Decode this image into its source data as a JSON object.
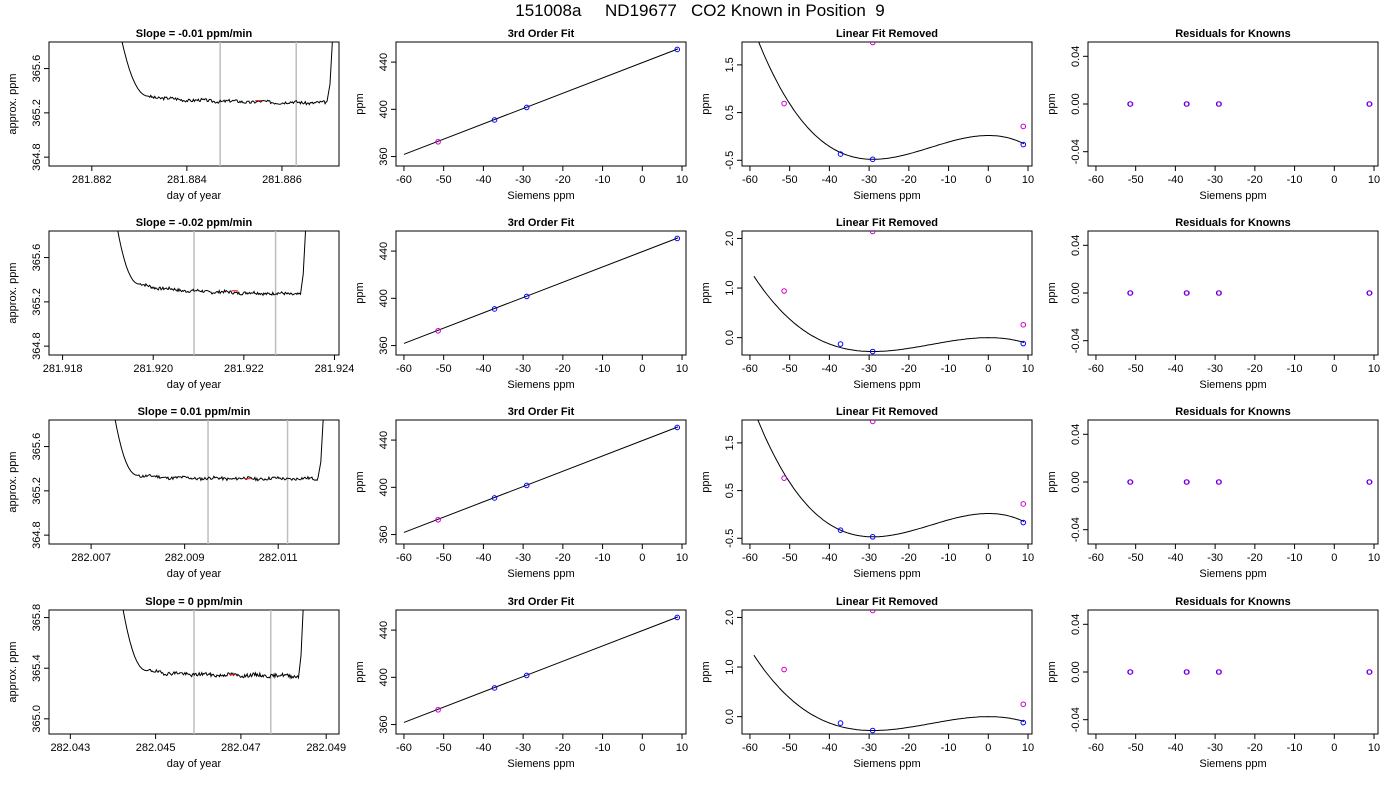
{
  "figure": {
    "title": "151008a     ND19677   CO2 Known in Position  9"
  },
  "colors": {
    "known_point": "#0000ff",
    "unknown_point": "#cc00cc",
    "line": "#000000",
    "window_marker": "#bebebe",
    "window_segment": "#ff0000"
  },
  "chart_data": [
    {
      "type": "line",
      "title": "Slope =  -0.01  ppm/min",
      "xlabel": "day of year",
      "ylabel": "approx. ppm",
      "xlim": [
        281.8811,
        281.8872
      ],
      "ylim": [
        364.72,
        365.84
      ],
      "xticks": [
        "281.882",
        "281.884",
        "281.886"
      ],
      "xtick_values": [
        281.882,
        281.884,
        281.886
      ],
      "yticks": [
        "364.8",
        "365.2",
        "365.6"
      ],
      "ytick_values": [
        364.8,
        365.2,
        365.6
      ],
      "window_markers": [
        281.8847,
        281.8863
      ],
      "trace": {
        "start": 281.8825,
        "plateau_start": 281.8832,
        "plateau_end": 281.88695,
        "end": 281.8871,
        "first_level": 365.35,
        "level": 365.31,
        "drift": -0.02,
        "seed": 3
      }
    },
    {
      "type": "line",
      "title": "3rd Order Fit",
      "xlabel": "Siemens ppm",
      "ylabel": "ppm",
      "xlim": [
        -62,
        11
      ],
      "ylim": [
        352,
        457
      ],
      "xticks": [
        "-60",
        "-50",
        "-40",
        "-30",
        "-20",
        "-10",
        "0",
        "10"
      ],
      "xtick_values": [
        -60,
        -50,
        -40,
        -30,
        -20,
        -10,
        0,
        10
      ],
      "yticks": [
        "360",
        "400",
        "440"
      ],
      "ytick_values": [
        360,
        400,
        440
      ],
      "fit_x": [
        -60,
        9
      ],
      "fit_y": [
        361.8,
        451.2
      ],
      "points": [
        {
          "x": -51.4,
          "y": 372.5,
          "kind": "unknown"
        },
        {
          "x": -37.2,
          "y": 391.0,
          "kind": "known"
        },
        {
          "x": -29.1,
          "y": 401.6,
          "kind": "known"
        },
        {
          "x": 8.8,
          "y": 450.7,
          "kind": "known"
        }
      ]
    },
    {
      "type": "line",
      "title": "Linear Fit Removed",
      "xlabel": "Siemens ppm",
      "ylabel": "ppm",
      "xlim": [
        -62,
        11
      ],
      "ylim": [
        -0.62,
        1.98
      ],
      "xticks": [
        "-60",
        "-50",
        "-40",
        "-30",
        "-20",
        "-10",
        "0",
        "10"
      ],
      "xtick_values": [
        -60,
        -50,
        -40,
        -30,
        -20,
        -10,
        0,
        10
      ],
      "yticks": [
        "-0.5",
        "0.5",
        "1.5"
      ],
      "ytick_values": [
        -0.5,
        0.5,
        1.5
      ],
      "curve": {
        "x_start": -59,
        "x_end": 9,
        "x1": -29,
        "y1": -0.48,
        "x2": 0,
        "y2": 0.02,
        "y_end": -0.17
      },
      "points": [
        {
          "x": -51.4,
          "y": 0.69,
          "kind": "unknown"
        },
        {
          "x": -37.2,
          "y": -0.37,
          "kind": "known"
        },
        {
          "x": -29.1,
          "y": -0.48,
          "kind": "known"
        },
        {
          "x": 8.8,
          "y": -0.17,
          "kind": "known"
        },
        {
          "x": -29.1,
          "y": 1.97,
          "kind": "unknown"
        },
        {
          "x": 8.8,
          "y": 0.21,
          "kind": "unknown"
        }
      ]
    },
    {
      "type": "scatter",
      "title": "Residuals for Knowns",
      "xlabel": "Siemens ppm",
      "ylabel": "ppm",
      "xlim": [
        -62,
        11
      ],
      "ylim": [
        -0.052,
        0.052
      ],
      "xticks": [
        "-60",
        "-50",
        "-40",
        "-30",
        "-20",
        "-10",
        "0",
        "10"
      ],
      "xtick_values": [
        -60,
        -50,
        -40,
        -30,
        -20,
        -10,
        0,
        10
      ],
      "yticks": [
        "-0.04",
        "0.00",
        "0.04"
      ],
      "ytick_values": [
        -0.04,
        0,
        0.04
      ],
      "points": [
        {
          "x": -51.4,
          "y": 0,
          "kind": "mixed"
        },
        {
          "x": -37.2,
          "y": 0,
          "kind": "mixed"
        },
        {
          "x": -29.1,
          "y": 0,
          "kind": "mixed"
        },
        {
          "x": 8.8,
          "y": 0,
          "kind": "mixed"
        }
      ]
    },
    {
      "type": "line",
      "title": "Slope =  -0.02  ppm/min",
      "xlabel": "day of year",
      "ylabel": "approx. ppm",
      "xlim": [
        281.9177,
        281.9241
      ],
      "ylim": [
        364.72,
        365.84
      ],
      "xticks": [
        "281.918",
        "281.920",
        "281.922",
        "281.924"
      ],
      "xtick_values": [
        281.918,
        281.92,
        281.922,
        281.924
      ],
      "yticks": [
        "364.8",
        "365.2",
        "365.6"
      ],
      "ytick_values": [
        364.8,
        365.2,
        365.6
      ],
      "window_markers": [
        281.9209,
        281.9227
      ],
      "trace": {
        "start": 281.9191,
        "plateau_start": 281.9197,
        "plateau_end": 281.92325,
        "end": 281.9234,
        "first_level": 365.36,
        "level": 365.3,
        "drift": -0.03,
        "seed": 7
      }
    },
    {
      "type": "line",
      "title": "3rd Order Fit",
      "xlabel": "Siemens ppm",
      "ylabel": "ppm",
      "xlim": [
        -62,
        11
      ],
      "ylim": [
        352,
        457
      ],
      "xticks": [
        "-60",
        "-50",
        "-40",
        "-30",
        "-20",
        "-10",
        "0",
        "10"
      ],
      "xtick_values": [
        -60,
        -50,
        -40,
        -30,
        -20,
        -10,
        0,
        10
      ],
      "yticks": [
        "360",
        "400",
        "440"
      ],
      "ytick_values": [
        360,
        400,
        440
      ],
      "fit_x": [
        -60,
        9
      ],
      "fit_y": [
        361.8,
        451.2
      ],
      "points": [
        {
          "x": -51.4,
          "y": 372.5,
          "kind": "unknown"
        },
        {
          "x": -37.2,
          "y": 391.0,
          "kind": "known"
        },
        {
          "x": -29.1,
          "y": 401.6,
          "kind": "known"
        },
        {
          "x": 8.8,
          "y": 450.7,
          "kind": "known"
        }
      ]
    },
    {
      "type": "line",
      "title": "Linear Fit Removed",
      "xlabel": "Siemens ppm",
      "ylabel": "ppm",
      "xlim": [
        -62,
        11
      ],
      "ylim": [
        -0.35,
        2.15
      ],
      "xticks": [
        "-60",
        "-50",
        "-40",
        "-30",
        "-20",
        "-10",
        "0",
        "10"
      ],
      "xtick_values": [
        -60,
        -50,
        -40,
        -30,
        -20,
        -10,
        0,
        10
      ],
      "yticks": [
        "0.0",
        "1.0",
        "2.0"
      ],
      "ytick_values": [
        0,
        1,
        2
      ],
      "curve": {
        "x_start": -59,
        "x_end": 9,
        "x1": -29,
        "y1": -0.28,
        "x2": 0,
        "y2": 0.0,
        "y_end": -0.12
      },
      "points": [
        {
          "x": -51.4,
          "y": 0.94,
          "kind": "unknown"
        },
        {
          "x": -37.2,
          "y": -0.13,
          "kind": "known"
        },
        {
          "x": -29.1,
          "y": -0.28,
          "kind": "known"
        },
        {
          "x": 8.8,
          "y": -0.12,
          "kind": "known"
        },
        {
          "x": -29.1,
          "y": 2.14,
          "kind": "unknown"
        },
        {
          "x": 8.8,
          "y": 0.26,
          "kind": "unknown"
        }
      ]
    },
    {
      "type": "scatter",
      "title": "Residuals for Knowns",
      "xlabel": "Siemens ppm",
      "ylabel": "ppm",
      "xlim": [
        -62,
        11
      ],
      "ylim": [
        -0.052,
        0.052
      ],
      "xticks": [
        "-60",
        "-50",
        "-40",
        "-30",
        "-20",
        "-10",
        "0",
        "10"
      ],
      "xtick_values": [
        -60,
        -50,
        -40,
        -30,
        -20,
        -10,
        0,
        10
      ],
      "yticks": [
        "-0.04",
        "0.00",
        "0.04"
      ],
      "ytick_values": [
        -0.04,
        0,
        0.04
      ],
      "points": [
        {
          "x": -51.4,
          "y": 0,
          "kind": "mixed"
        },
        {
          "x": -37.2,
          "y": 0,
          "kind": "mixed"
        },
        {
          "x": -29.1,
          "y": 0,
          "kind": "mixed"
        },
        {
          "x": 8.8,
          "y": 0,
          "kind": "mixed"
        }
      ]
    },
    {
      "type": "line",
      "title": "Slope =  0.01  ppm/min",
      "xlabel": "day of year",
      "ylabel": "approx. ppm",
      "xlim": [
        282.0061,
        282.0123
      ],
      "ylim": [
        364.72,
        365.84
      ],
      "xticks": [
        "282.007",
        "282.009",
        "282.011"
      ],
      "xtick_values": [
        282.007,
        282.009,
        282.011
      ],
      "yticks": [
        "364.8",
        "365.2",
        "365.6"
      ],
      "ytick_values": [
        364.8,
        365.2,
        365.6
      ],
      "window_markers": [
        282.0095,
        282.0112
      ],
      "trace": {
        "start": 282.0074,
        "plateau_start": 282.008,
        "plateau_end": 282.01185,
        "end": 282.012,
        "first_level": 365.34,
        "level": 365.31,
        "drift": 0.0,
        "seed": 11
      }
    },
    {
      "type": "line",
      "title": "3rd Order Fit",
      "xlabel": "Siemens ppm",
      "ylabel": "ppm",
      "xlim": [
        -62,
        11
      ],
      "ylim": [
        352,
        457
      ],
      "xticks": [
        "-60",
        "-50",
        "-40",
        "-30",
        "-20",
        "-10",
        "0",
        "10"
      ],
      "xtick_values": [
        -60,
        -50,
        -40,
        -30,
        -20,
        -10,
        0,
        10
      ],
      "yticks": [
        "360",
        "400",
        "440"
      ],
      "ytick_values": [
        360,
        400,
        440
      ],
      "fit_x": [
        -60,
        9
      ],
      "fit_y": [
        361.8,
        451.2
      ],
      "points": [
        {
          "x": -51.4,
          "y": 372.5,
          "kind": "unknown"
        },
        {
          "x": -37.2,
          "y": 391.0,
          "kind": "known"
        },
        {
          "x": -29.1,
          "y": 401.6,
          "kind": "known"
        },
        {
          "x": 8.8,
          "y": 450.7,
          "kind": "known"
        }
      ]
    },
    {
      "type": "line",
      "title": "Linear Fit Removed",
      "xlabel": "Siemens ppm",
      "ylabel": "ppm",
      "xlim": [
        -62,
        11
      ],
      "ylim": [
        -0.62,
        1.98
      ],
      "xticks": [
        "-60",
        "-50",
        "-40",
        "-30",
        "-20",
        "-10",
        "0",
        "10"
      ],
      "xtick_values": [
        -60,
        -50,
        -40,
        -30,
        -20,
        -10,
        0,
        10
      ],
      "yticks": [
        "-0.5",
        "0.5",
        "1.5"
      ],
      "ytick_values": [
        -0.5,
        0.5,
        1.5
      ],
      "curve": {
        "x_start": -59,
        "x_end": 9,
        "x1": -29,
        "y1": -0.47,
        "x2": 0,
        "y2": 0.02,
        "y_end": -0.17
      },
      "points": [
        {
          "x": -51.4,
          "y": 0.76,
          "kind": "unknown"
        },
        {
          "x": -37.2,
          "y": -0.33,
          "kind": "known"
        },
        {
          "x": -29.1,
          "y": -0.47,
          "kind": "known"
        },
        {
          "x": 8.8,
          "y": -0.17,
          "kind": "known"
        },
        {
          "x": -29.1,
          "y": 1.95,
          "kind": "unknown"
        },
        {
          "x": 8.8,
          "y": 0.22,
          "kind": "unknown"
        }
      ]
    },
    {
      "type": "scatter",
      "title": "Residuals for Knowns",
      "xlabel": "Siemens ppm",
      "ylabel": "ppm",
      "xlim": [
        -62,
        11
      ],
      "ylim": [
        -0.052,
        0.052
      ],
      "xticks": [
        "-60",
        "-50",
        "-40",
        "-30",
        "-20",
        "-10",
        "0",
        "10"
      ],
      "xtick_values": [
        -60,
        -50,
        -40,
        -30,
        -20,
        -10,
        0,
        10
      ],
      "yticks": [
        "-0.04",
        "0.00",
        "0.04"
      ],
      "ytick_values": [
        -0.04,
        0,
        0.04
      ],
      "points": [
        {
          "x": -51.4,
          "y": 0,
          "kind": "mixed"
        },
        {
          "x": -37.2,
          "y": 0,
          "kind": "mixed"
        },
        {
          "x": -29.1,
          "y": 0,
          "kind": "mixed"
        },
        {
          "x": 8.8,
          "y": 0,
          "kind": "mixed"
        }
      ]
    },
    {
      "type": "line",
      "title": "Slope =  0  ppm/min",
      "xlabel": "day of year",
      "ylabel": "approx. ppm",
      "xlim": [
        282.0425,
        282.0493
      ],
      "ylim": [
        364.88,
        365.86
      ],
      "xticks": [
        "282.043",
        "282.045",
        "282.047",
        "282.049"
      ],
      "xtick_values": [
        282.043,
        282.045,
        282.047,
        282.049
      ],
      "yticks": [
        "365.0",
        "365.4",
        "365.8"
      ],
      "ytick_values": [
        365.0,
        365.4,
        365.8
      ],
      "window_markers": [
        282.0459,
        282.0477
      ],
      "trace": {
        "start": 282.0441,
        "plateau_start": 282.0448,
        "plateau_end": 282.04835,
        "end": 282.0485,
        "first_level": 365.38,
        "level": 365.35,
        "drift": -0.01,
        "seed": 19
      }
    },
    {
      "type": "line",
      "title": "3rd Order Fit",
      "xlabel": "Siemens ppm",
      "ylabel": "ppm",
      "xlim": [
        -62,
        11
      ],
      "ylim": [
        352,
        457
      ],
      "xticks": [
        "-60",
        "-50",
        "-40",
        "-30",
        "-20",
        "-10",
        "0",
        "10"
      ],
      "xtick_values": [
        -60,
        -50,
        -40,
        -30,
        -20,
        -10,
        0,
        10
      ],
      "yticks": [
        "360",
        "400",
        "440"
      ],
      "ytick_values": [
        360,
        400,
        440
      ],
      "fit_x": [
        -60,
        9
      ],
      "fit_y": [
        361.8,
        451.2
      ],
      "points": [
        {
          "x": -51.4,
          "y": 372.5,
          "kind": "unknown"
        },
        {
          "x": -37.2,
          "y": 391.0,
          "kind": "known"
        },
        {
          "x": -29.1,
          "y": 401.6,
          "kind": "known"
        },
        {
          "x": 8.8,
          "y": 450.7,
          "kind": "known"
        }
      ]
    },
    {
      "type": "line",
      "title": "Linear Fit Removed",
      "xlabel": "Siemens ppm",
      "ylabel": "ppm",
      "xlim": [
        -62,
        11
      ],
      "ylim": [
        -0.35,
        2.15
      ],
      "xticks": [
        "-60",
        "-50",
        "-40",
        "-30",
        "-20",
        "-10",
        "0",
        "10"
      ],
      "xtick_values": [
        -60,
        -50,
        -40,
        -30,
        -20,
        -10,
        0,
        10
      ],
      "yticks": [
        "0.0",
        "1.0",
        "2.0"
      ],
      "ytick_values": [
        0,
        1,
        2
      ],
      "curve": {
        "x_start": -59,
        "x_end": 9,
        "x1": -29,
        "y1": -0.28,
        "x2": 0,
        "y2": 0.0,
        "y_end": -0.12
      },
      "points": [
        {
          "x": -51.4,
          "y": 0.95,
          "kind": "unknown"
        },
        {
          "x": -37.2,
          "y": -0.13,
          "kind": "known"
        },
        {
          "x": -29.1,
          "y": -0.28,
          "kind": "known"
        },
        {
          "x": 8.8,
          "y": -0.12,
          "kind": "known"
        },
        {
          "x": -29.1,
          "y": 2.14,
          "kind": "unknown"
        },
        {
          "x": 8.8,
          "y": 0.25,
          "kind": "unknown"
        }
      ]
    },
    {
      "type": "scatter",
      "title": "Residuals for Knowns",
      "xlabel": "Siemens ppm",
      "ylabel": "ppm",
      "xlim": [
        -62,
        11
      ],
      "ylim": [
        -0.052,
        0.052
      ],
      "xticks": [
        "-60",
        "-50",
        "-40",
        "-30",
        "-20",
        "-10",
        "0",
        "10"
      ],
      "xtick_values": [
        -60,
        -50,
        -40,
        -30,
        -20,
        -10,
        0,
        10
      ],
      "yticks": [
        "-0.04",
        "0.00",
        "0.04"
      ],
      "ytick_values": [
        -0.04,
        0,
        0.04
      ],
      "points": [
        {
          "x": -51.4,
          "y": 0,
          "kind": "mixed"
        },
        {
          "x": -37.2,
          "y": 0,
          "kind": "mixed"
        },
        {
          "x": -29.1,
          "y": 0,
          "kind": "mixed"
        },
        {
          "x": 8.8,
          "y": 0,
          "kind": "mixed"
        }
      ]
    }
  ]
}
